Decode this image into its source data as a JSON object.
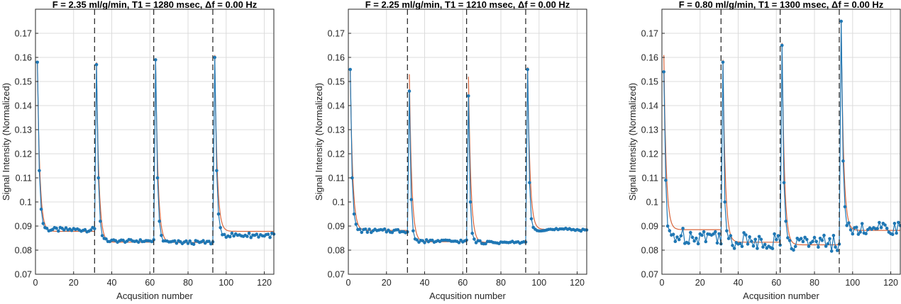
{
  "colors": {
    "marker": "#1f77b4",
    "model": "#d9653b",
    "grid": "#dcdcdc",
    "axis": "#262626",
    "vline": "#303030"
  },
  "chart_data": [
    {
      "type": "line",
      "title": "F = 2.35 ml/g/min, T1 = 1280 msec, Δf = 0.00 Hz",
      "xlabel": "Acqusition number",
      "ylabel": "Signal Intensity (Normalized)",
      "xlim": [
        0,
        125
      ],
      "ylim": [
        0.07,
        0.18
      ],
      "xticks": [
        0,
        20,
        40,
        60,
        80,
        100,
        120
      ],
      "yticks": [
        0.07,
        0.08,
        0.09,
        0.1,
        0.11,
        0.12,
        0.13,
        0.14,
        0.15,
        0.16,
        0.17
      ],
      "grid": true,
      "vlines": [
        31,
        62,
        93
      ],
      "segments": [
        {
          "peak": 0.158,
          "second": 0.113,
          "third": 0.097,
          "level": 0.0885,
          "noise": 0.0009,
          "model_start": 0.158,
          "model_level": 0.0878
        },
        {
          "peak": 0.157,
          "second": 0.11,
          "third": 0.092,
          "level": 0.0838,
          "noise": 0.0006,
          "model_start": 0.158,
          "model_level": 0.0833
        },
        {
          "peak": 0.159,
          "second": 0.11,
          "third": 0.092,
          "level": 0.0832,
          "noise": 0.0008,
          "model_start": 0.159,
          "model_level": 0.0832
        },
        {
          "peak": 0.16,
          "second": 0.113,
          "third": 0.095,
          "level": 0.0862,
          "noise": 0.001,
          "model_start": 0.161,
          "model_level": 0.0878
        }
      ]
    },
    {
      "type": "line",
      "title": "F = 2.25 ml/g/min, T1 = 1210 msec, Δf = 0.00 Hz",
      "xlabel": "Acqusition number",
      "ylabel": "Signal Intensity (Normalized)",
      "xlim": [
        0,
        125
      ],
      "ylim": [
        0.07,
        0.18
      ],
      "xticks": [
        0,
        20,
        40,
        60,
        80,
        100,
        120
      ],
      "yticks": [
        0.07,
        0.08,
        0.09,
        0.1,
        0.11,
        0.12,
        0.13,
        0.14,
        0.15,
        0.16,
        0.17
      ],
      "grid": true,
      "vlines": [
        31,
        62,
        93
      ],
      "segments": [
        {
          "peak": 0.155,
          "second": 0.11,
          "third": 0.095,
          "level": 0.088,
          "noise": 0.0008,
          "model_start": 0.155,
          "model_level": 0.0882
        },
        {
          "peak": 0.146,
          "second": 0.101,
          "third": 0.088,
          "level": 0.0837,
          "noise": 0.0006,
          "model_start": 0.153,
          "model_level": 0.0835
        },
        {
          "peak": 0.144,
          "second": 0.1,
          "third": 0.087,
          "level": 0.0832,
          "noise": 0.0006,
          "model_start": 0.152,
          "model_level": 0.0832
        },
        {
          "peak": 0.155,
          "second": 0.108,
          "third": 0.093,
          "level": 0.0885,
          "noise": 0.0006,
          "model_start": 0.156,
          "model_level": 0.0886
        }
      ]
    },
    {
      "type": "line",
      "title": "F = 0.80 ml/g/min, T1 = 1300 msec, Δf = 0.00 Hz",
      "xlabel": "Acqusition number",
      "ylabel": "Signal Intensity (Normalized)",
      "xlim": [
        0,
        125
      ],
      "ylim": [
        0.07,
        0.18
      ],
      "xticks": [
        0,
        20,
        40,
        60,
        80,
        100,
        120
      ],
      "yticks": [
        0.07,
        0.08,
        0.09,
        0.1,
        0.11,
        0.12,
        0.13,
        0.14,
        0.15,
        0.16,
        0.17
      ],
      "grid": true,
      "vlines": [
        31,
        62,
        93
      ],
      "segments": [
        {
          "peak": 0.154,
          "second": 0.109,
          "third": 0.09,
          "level": 0.086,
          "noise": 0.0035,
          "model_start": 0.161,
          "model_level": 0.0885
        },
        {
          "peak": 0.158,
          "second": 0.1,
          "third": 0.088,
          "level": 0.0838,
          "noise": 0.0035,
          "model_start": 0.159,
          "model_level": 0.0833
        },
        {
          "peak": 0.165,
          "second": 0.108,
          "third": 0.092,
          "level": 0.083,
          "noise": 0.0035,
          "model_start": 0.166,
          "model_level": 0.0822
        },
        {
          "peak": 0.175,
          "second": 0.117,
          "third": 0.098,
          "level": 0.089,
          "noise": 0.0025,
          "model_start": 0.175,
          "model_level": 0.0882
        }
      ]
    }
  ]
}
